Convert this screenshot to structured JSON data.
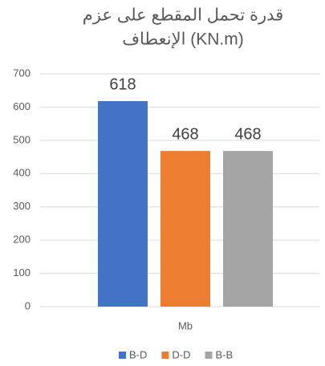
{
  "chart_data": {
    "type": "bar",
    "title": [
      "قدرة تحمل المقطع على عزم",
      "الإنعطاف (KN.m)"
    ],
    "categories": [
      "Mb"
    ],
    "series": [
      {
        "name": "B-D",
        "color": "#4472c4",
        "values": [
          618
        ]
      },
      {
        "name": "D-D",
        "color": "#ed7d31",
        "values": [
          468
        ]
      },
      {
        "name": "B-B",
        "color": "#a5a5a5",
        "values": [
          468
        ]
      }
    ],
    "ylim": [
      0,
      700
    ],
    "yticks": [
      0,
      100,
      200,
      300,
      400,
      500,
      600,
      700
    ],
    "grid": true,
    "legend": "bottom",
    "data_labels": true
  }
}
